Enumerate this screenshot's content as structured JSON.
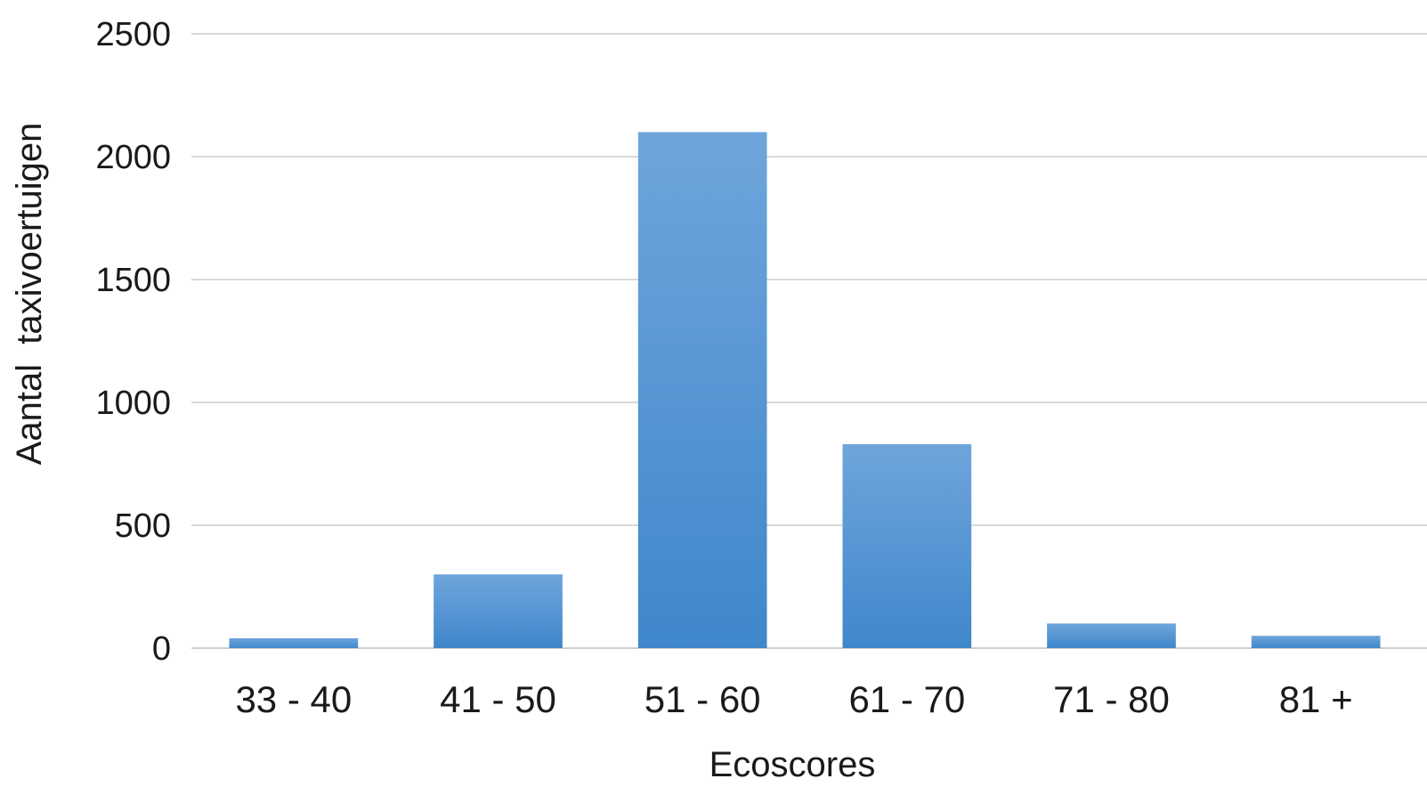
{
  "chart_data": {
    "type": "bar",
    "title": "",
    "xlabel": "Ecoscores",
    "ylabel": "Aantal  taxivoertuigen",
    "categories": [
      "33 - 40",
      "41 - 50",
      "51 - 60",
      "61 - 70",
      "71 - 80",
      "81 +"
    ],
    "values": [
      40,
      300,
      2100,
      830,
      100,
      50
    ],
    "ylim": [
      0,
      2500
    ],
    "yticks": [
      "0",
      "500",
      "1000",
      "1500",
      "2000",
      "2500"
    ],
    "grid": true,
    "legend": "none",
    "colors": {
      "bar_top": "#6fa5dc",
      "bar_bottom": "#3f87cb",
      "grid": "#d9d9d9",
      "axis": "#d0d0d0"
    }
  }
}
